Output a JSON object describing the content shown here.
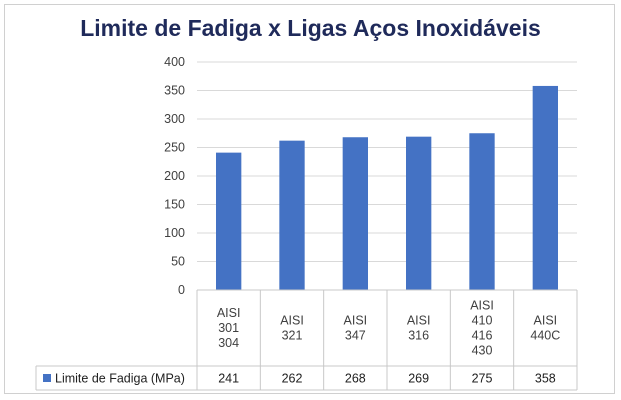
{
  "chart_data": {
    "type": "bar",
    "title": "Limite de Fadiga x Ligas Aços Inoxidáveis",
    "categories": [
      [
        "AISI",
        "301",
        "304"
      ],
      [
        "AISI",
        "321"
      ],
      [
        "AISI",
        "347"
      ],
      [
        "AISI",
        "316"
      ],
      [
        "AISI",
        "410",
        "416",
        "430"
      ],
      [
        "AISI",
        "440C"
      ]
    ],
    "series": [
      {
        "name": "Limite de Fadiga (MPa)",
        "values": [
          241,
          262,
          268,
          269,
          275,
          358
        ],
        "color": "#4472c4"
      }
    ],
    "ylim": [
      0,
      400
    ],
    "yticks": [
      0,
      50,
      100,
      150,
      200,
      250,
      300,
      350,
      400
    ],
    "grid": true,
    "legend": "data-table",
    "data_table": true
  }
}
